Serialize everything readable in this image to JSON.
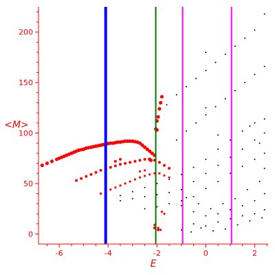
{
  "chart_data": {
    "type": "scatter",
    "title": "",
    "xlabel": "E",
    "ylabel": "<M>",
    "xlim": [
      -6.85,
      2.55
    ],
    "ylim": [
      -10,
      225
    ],
    "x_ticks": [
      -6,
      -4,
      -2,
      0,
      2
    ],
    "y_ticks": [
      0,
      50,
      100,
      150,
      200
    ],
    "grid": false,
    "colors": {
      "axis": "#ff0000",
      "red_points": "#ff0000",
      "black_points": "#000000",
      "blue_line": "#0000ff",
      "green_line": "#007700",
      "magenta_line": "#ff00ff"
    },
    "vertical_lines": [
      {
        "x": -4.1,
        "color": "#0000ff",
        "width": "thick"
      },
      {
        "x": -2.05,
        "color": "#007700",
        "width": "normal"
      },
      {
        "x": -0.95,
        "color": "#ff00ff",
        "width": "normal"
      },
      {
        "x": 1.05,
        "color": "#ff00ff",
        "width": "normal"
      }
    ],
    "series": [
      {
        "color": "#ff0000",
        "marker": "large",
        "points": [
          [
            -6.7,
            68
          ],
          [
            -6.5,
            70
          ],
          [
            -6.3,
            72
          ],
          [
            -6.1,
            74
          ],
          [
            -6.0,
            75
          ],
          [
            -5.9,
            76
          ],
          [
            -5.8,
            77
          ],
          [
            -5.7,
            78
          ],
          [
            -5.6,
            79
          ],
          [
            -5.5,
            80
          ],
          [
            -5.4,
            81
          ],
          [
            -5.3,
            82
          ],
          [
            -5.2,
            83
          ],
          [
            -5.1,
            83.5
          ],
          [
            -5.0,
            84
          ],
          [
            -4.9,
            85
          ],
          [
            -4.8,
            85.5
          ],
          [
            -4.7,
            86
          ],
          [
            -4.6,
            86.5
          ],
          [
            -4.5,
            87
          ],
          [
            -4.4,
            87.5
          ],
          [
            -4.3,
            88
          ],
          [
            -4.2,
            88.5
          ],
          [
            -4.1,
            89
          ],
          [
            -4.0,
            89.5
          ],
          [
            -3.9,
            90
          ],
          [
            -3.8,
            90
          ],
          [
            -3.7,
            90.5
          ],
          [
            -3.6,
            91
          ],
          [
            -3.5,
            91
          ],
          [
            -3.4,
            91.5
          ],
          [
            -3.3,
            92
          ],
          [
            -3.2,
            92
          ],
          [
            -3.1,
            92
          ],
          [
            -3.0,
            92
          ],
          [
            -2.9,
            91.5
          ],
          [
            -2.8,
            91
          ],
          [
            -2.7,
            90
          ],
          [
            -2.6,
            88
          ],
          [
            -2.5,
            86
          ],
          [
            -2.4,
            84
          ],
          [
            -2.3,
            82
          ],
          [
            -2.2,
            80
          ],
          [
            -2.1,
            78
          ],
          [
            -2.0,
            103
          ],
          [
            -2.05,
            104
          ],
          [
            -1.95,
            116
          ],
          [
            -1.9,
            124
          ],
          [
            -1.85,
            130
          ],
          [
            -1.8,
            136
          ],
          [
            -2.0,
            112
          ],
          [
            -2.3,
            74
          ],
          [
            -2.25,
            73
          ]
        ]
      },
      {
        "color": "#ff0000",
        "marker": "medium",
        "points": [
          [
            -5.3,
            53
          ],
          [
            -5.1,
            55
          ],
          [
            -4.9,
            57
          ],
          [
            -4.7,
            59
          ],
          [
            -4.5,
            61
          ],
          [
            -4.3,
            63
          ],
          [
            -4.1,
            64.5
          ],
          [
            -3.9,
            66
          ],
          [
            -3.7,
            67.5
          ],
          [
            -3.5,
            69
          ],
          [
            -3.3,
            70
          ],
          [
            -3.1,
            71
          ],
          [
            -2.9,
            72
          ],
          [
            -2.7,
            73
          ],
          [
            -2.5,
            74
          ],
          [
            -2.3,
            74
          ],
          [
            -2.1,
            73
          ],
          [
            -1.9,
            71
          ],
          [
            -1.7,
            68
          ],
          [
            -1.5,
            65
          ],
          [
            -3.7,
            72
          ],
          [
            -3.5,
            74
          ],
          [
            -2.1,
            6
          ],
          [
            -1.95,
            4
          ]
        ]
      },
      {
        "color": "#ff0000",
        "marker": "small",
        "points": [
          [
            -4.3,
            40
          ],
          [
            -4.1,
            42
          ],
          [
            -3.9,
            44
          ],
          [
            -3.7,
            46
          ],
          [
            -3.5,
            48
          ],
          [
            -3.3,
            50
          ],
          [
            -3.1,
            52
          ],
          [
            -2.9,
            54
          ],
          [
            -2.7,
            56
          ],
          [
            -2.5,
            57.5
          ],
          [
            -2.3,
            59
          ],
          [
            -2.1,
            60
          ],
          [
            -1.9,
            60
          ],
          [
            -1.7,
            58
          ],
          [
            -1.5,
            56
          ],
          [
            -2.7,
            62
          ],
          [
            -2.5,
            63
          ],
          [
            -2.1,
            9
          ],
          [
            -1.95,
            6
          ],
          [
            -1.85,
            4
          ],
          [
            -1.8,
            22
          ],
          [
            -1.7,
            20
          ]
        ]
      },
      {
        "color": "#000000",
        "marker": "dot",
        "points": [
          [
            -1.6,
            128
          ],
          [
            -1.2,
            138
          ],
          [
            -0.8,
            146
          ],
          [
            -0.4,
            154
          ],
          [
            0.0,
            162
          ],
          [
            0.4,
            170
          ],
          [
            0.8,
            178
          ],
          [
            1.2,
            186
          ],
          [
            1.6,
            194
          ],
          [
            2.0,
            202
          ],
          [
            2.4,
            218
          ],
          [
            -1.2,
            93
          ],
          [
            -0.8,
            102
          ],
          [
            -0.4,
            110
          ],
          [
            0.0,
            118
          ],
          [
            0.4,
            126
          ],
          [
            0.8,
            134
          ],
          [
            1.2,
            142
          ],
          [
            1.6,
            150
          ],
          [
            2.0,
            158
          ],
          [
            2.4,
            166
          ],
          [
            -3.5,
            38
          ],
          [
            -3.0,
            42
          ],
          [
            -2.5,
            46
          ],
          [
            -2.0,
            50
          ],
          [
            -1.5,
            54
          ],
          [
            -1.0,
            59
          ],
          [
            -0.5,
            66
          ],
          [
            0.0,
            74
          ],
          [
            0.5,
            84
          ],
          [
            1.0,
            93
          ],
          [
            1.5,
            102
          ],
          [
            2.0,
            110
          ],
          [
            2.4,
            114
          ],
          [
            -3.5,
            33
          ],
          [
            -3.0,
            35
          ],
          [
            -2.5,
            37
          ],
          [
            -2.0,
            39
          ],
          [
            -1.5,
            41
          ],
          [
            -1.0,
            44
          ],
          [
            -0.5,
            52
          ],
          [
            0.0,
            60
          ],
          [
            0.5,
            68
          ],
          [
            1.0,
            76
          ],
          [
            1.5,
            84
          ],
          [
            2.0,
            93
          ],
          [
            2.4,
            100
          ],
          [
            -2.5,
            25
          ],
          [
            -2.0,
            27
          ],
          [
            -1.5,
            30
          ],
          [
            -1.0,
            33
          ],
          [
            -0.5,
            37
          ],
          [
            0.0,
            45
          ],
          [
            0.5,
            52
          ],
          [
            1.0,
            60
          ],
          [
            1.5,
            67
          ],
          [
            2.0,
            74
          ],
          [
            2.4,
            80
          ],
          [
            -1.0,
            28
          ],
          [
            -0.5,
            22
          ],
          [
            0.0,
            18
          ],
          [
            0.5,
            20
          ],
          [
            1.0,
            24
          ],
          [
            1.5,
            28
          ],
          [
            2.0,
            33
          ],
          [
            2.4,
            40
          ],
          [
            -0.8,
            36
          ],
          [
            -0.3,
            30
          ],
          [
            0.2,
            25
          ],
          [
            0.7,
            30
          ],
          [
            1.2,
            35
          ],
          [
            1.7,
            44
          ],
          [
            2.2,
            52
          ],
          [
            -0.5,
            10
          ],
          [
            0.0,
            8
          ],
          [
            0.5,
            12
          ],
          [
            1.0,
            15
          ],
          [
            1.5,
            18
          ],
          [
            2.0,
            20
          ],
          [
            2.4,
            24
          ],
          [
            -1.0,
            4
          ],
          [
            -0.6,
            2
          ],
          [
            -0.2,
            6
          ],
          [
            0.3,
            3
          ],
          [
            0.8,
            5
          ],
          [
            1.3,
            9
          ],
          [
            1.8,
            13
          ],
          [
            2.3,
            16
          ],
          [
            0.0,
            125
          ],
          [
            0.5,
            98
          ],
          [
            0.0,
            180
          ],
          [
            1.8,
            107
          ],
          [
            2.2,
            90
          ],
          [
            2.4,
            65
          ]
        ]
      }
    ]
  }
}
